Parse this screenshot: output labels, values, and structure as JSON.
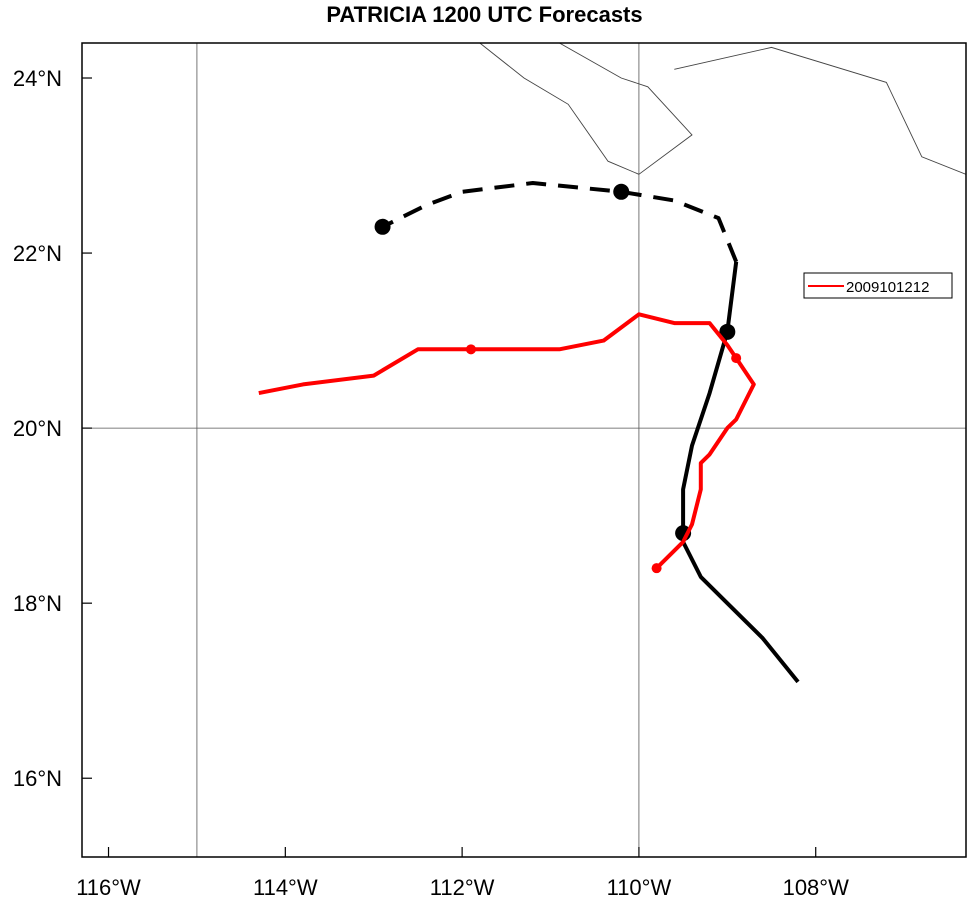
{
  "title": "PATRICIA 1200 UTC Forecasts",
  "chart_data": {
    "type": "map-tracks",
    "x_ticks": [
      {
        "value": -116,
        "label": "116°W"
      },
      {
        "value": -114,
        "label": "114°W"
      },
      {
        "value": -112,
        "label": "112°W"
      },
      {
        "value": -110,
        "label": "110°W"
      },
      {
        "value": -108,
        "label": "108°W"
      }
    ],
    "y_ticks": [
      {
        "value": 24,
        "label": "24°N"
      },
      {
        "value": 22,
        "label": "22°N"
      },
      {
        "value": 20,
        "label": "20°N"
      },
      {
        "value": 18,
        "label": "18°N"
      },
      {
        "value": 16,
        "label": "16°N"
      }
    ],
    "xlim": [
      -116.3,
      -106.3
    ],
    "ylim": [
      15.1,
      24.4
    ],
    "grid": {
      "lon": [
        -115,
        -110,
        -105
      ],
      "lat": [
        25,
        20,
        15
      ]
    },
    "legend_position": "right",
    "coastlines": [
      [
        [
          -111.8,
          24.4
        ],
        [
          -111.3,
          24.0
        ],
        [
          -110.8,
          23.7
        ],
        [
          -110.35,
          23.05
        ],
        [
          -110.0,
          22.9
        ]
      ],
      [
        [
          -110.0,
          22.9
        ],
        [
          -109.4,
          23.35
        ],
        [
          -109.9,
          23.9
        ],
        [
          -110.2,
          24.0
        ],
        [
          -110.9,
          24.4
        ]
      ],
      [
        [
          -109.6,
          24.1
        ],
        [
          -108.5,
          24.35
        ],
        [
          -107.2,
          23.95
        ],
        [
          -106.8,
          23.1
        ],
        [
          -106.3,
          22.9
        ]
      ]
    ],
    "series": [
      {
        "name": "",
        "color": "#000000",
        "points": [
          [
            -108.2,
            17.1
          ],
          [
            -108.6,
            17.6
          ],
          [
            -109.0,
            18.0
          ],
          [
            -109.3,
            18.3
          ],
          [
            -109.5,
            18.7
          ],
          [
            -109.5,
            19.3
          ],
          [
            -109.4,
            19.8
          ],
          [
            -109.2,
            20.4
          ],
          [
            -109.0,
            21.1
          ],
          [
            -108.9,
            21.9
          ],
          [
            -109.1,
            22.4
          ],
          [
            -109.6,
            22.6
          ],
          [
            -110.2,
            22.7
          ],
          [
            -110.7,
            22.75
          ],
          [
            -111.2,
            22.8
          ],
          [
            -111.6,
            22.75
          ],
          [
            -112.0,
            22.7
          ],
          [
            -112.4,
            22.55
          ],
          [
            -112.9,
            22.3
          ]
        ],
        "dash_from_index": 9,
        "markers": [
          [
            -109.5,
            18.8
          ],
          [
            -109.0,
            21.1
          ],
          [
            -110.2,
            22.7
          ],
          [
            -112.9,
            22.3
          ]
        ]
      },
      {
        "name": "2009101212",
        "color": "#ff0000",
        "points": [
          [
            -114.3,
            20.4
          ],
          [
            -113.8,
            20.5
          ],
          [
            -113.0,
            20.6
          ],
          [
            -112.5,
            20.9
          ],
          [
            -111.9,
            20.9
          ],
          [
            -111.4,
            20.9
          ],
          [
            -110.9,
            20.9
          ],
          [
            -110.4,
            21.0
          ],
          [
            -110.0,
            21.3
          ],
          [
            -109.6,
            21.2
          ],
          [
            -109.2,
            21.2
          ],
          [
            -109.0,
            20.95
          ],
          [
            -108.9,
            20.8
          ],
          [
            -108.7,
            20.5
          ],
          [
            -108.9,
            20.1
          ],
          [
            -109.0,
            20.0
          ],
          [
            -109.2,
            19.7
          ],
          [
            -109.3,
            19.6
          ],
          [
            -109.3,
            19.3
          ],
          [
            -109.4,
            18.9
          ],
          [
            -109.5,
            18.7
          ],
          [
            -109.8,
            18.4
          ]
        ],
        "markers": [
          [
            -111.9,
            20.9
          ],
          [
            -108.9,
            20.8
          ],
          [
            -109.8,
            18.4
          ]
        ]
      }
    ]
  }
}
